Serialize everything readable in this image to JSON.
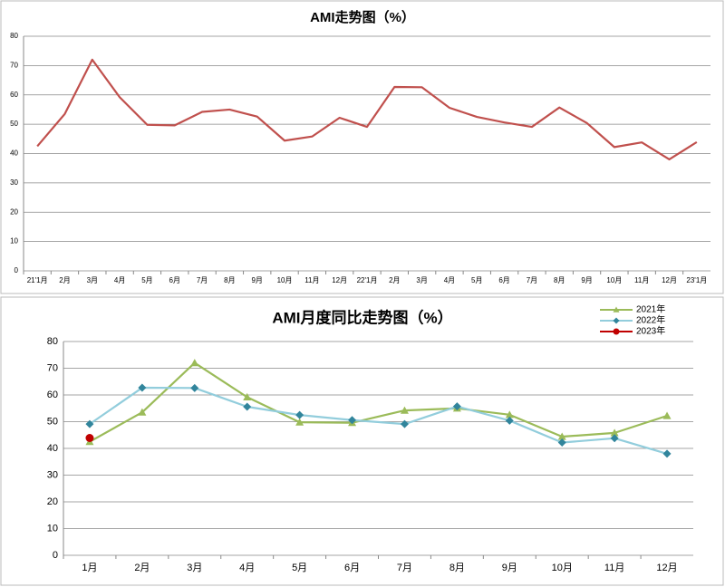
{
  "chart_data": [
    {
      "type": "line",
      "title": "AMI走势图（%）",
      "categories": [
        "21'1月",
        "2月",
        "3月",
        "4月",
        "5月",
        "6月",
        "7月",
        "8月",
        "9月",
        "10月",
        "11月",
        "12月",
        "22'1月",
        "2月",
        "3月",
        "4月",
        "5月",
        "6月",
        "7月",
        "8月",
        "9月",
        "10月",
        "11月",
        "12月",
        "23'1月"
      ],
      "values": [
        42.5,
        53.5,
        72,
        59.2,
        49.8,
        49.6,
        54.2,
        55,
        52.6,
        44.4,
        45.8,
        52.2,
        49.1,
        62.7,
        62.6,
        55.6,
        52.5,
        50.6,
        49.1,
        55.7,
        50.4,
        42.2,
        43.8,
        38,
        43.9
      ],
      "color": "#c0504d",
      "ylim": [
        0,
        80
      ],
      "yticks": [
        0,
        10,
        20,
        30,
        40,
        50,
        60,
        70,
        80
      ],
      "grid": true
    },
    {
      "type": "line",
      "title": "AMI月度同比走势图（%）",
      "categories": [
        "1月",
        "2月",
        "3月",
        "4月",
        "5月",
        "6月",
        "7月",
        "8月",
        "9月",
        "10月",
        "11月",
        "12月"
      ],
      "series": [
        {
          "name": "2021年",
          "color": "#9bbb59",
          "marker": "triangle",
          "values": [
            42.5,
            53.5,
            72,
            59.2,
            49.8,
            49.6,
            54.2,
            55,
            52.6,
            44.4,
            45.8,
            52.2
          ]
        },
        {
          "name": "2022年",
          "color": "#92cddc",
          "marker": "diamond",
          "markerColor": "#31859c",
          "values": [
            49.1,
            62.7,
            62.6,
            55.6,
            52.5,
            50.6,
            49.1,
            55.7,
            50.4,
            42.2,
            43.8,
            38
          ]
        },
        {
          "name": "2023年",
          "color": "#c00000",
          "marker": "circle",
          "values": [
            43.9,
            null,
            null,
            null,
            null,
            null,
            null,
            null,
            null,
            null,
            null,
            null
          ]
        }
      ],
      "ylim": [
        0,
        80
      ],
      "yticks": [
        0,
        10,
        20,
        30,
        40,
        50,
        60,
        70,
        80
      ],
      "grid": true,
      "legend": "top-right"
    }
  ]
}
